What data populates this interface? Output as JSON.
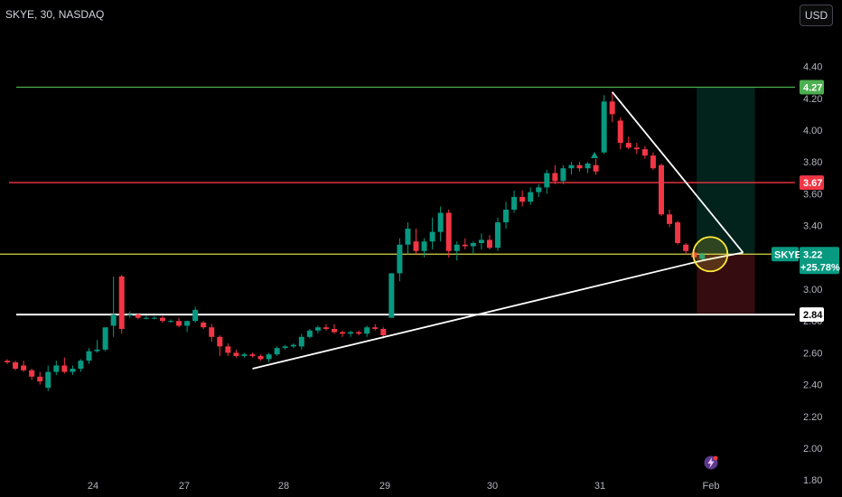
{
  "header": {
    "symbol_line": "SKYE, 30, NASDAQ",
    "currency_button": "USD"
  },
  "chart_data": {
    "type": "candlestick",
    "title": "SKYE, 30, NASDAQ",
    "currency": "USD",
    "ylim": [
      1.7,
      4.55
    ],
    "y_ticks": [
      1.8,
      2.0,
      2.2,
      2.4,
      2.6,
      2.8,
      3.0,
      3.2,
      3.4,
      3.6,
      3.8,
      4.0,
      4.2,
      4.4
    ],
    "x_ticks": [
      "24",
      "27",
      "28",
      "29",
      "30",
      "31",
      "Feb"
    ],
    "grid": false,
    "candles": [
      [
        2.55,
        2.56,
        2.53,
        2.54
      ],
      [
        2.54,
        2.55,
        2.49,
        2.5
      ],
      [
        2.52,
        2.55,
        2.48,
        2.49
      ],
      [
        2.49,
        2.5,
        2.43,
        2.45
      ],
      [
        2.45,
        2.48,
        2.4,
        2.42
      ],
      [
        2.38,
        2.52,
        2.36,
        2.48
      ],
      [
        2.48,
        2.55,
        2.46,
        2.52
      ],
      [
        2.52,
        2.57,
        2.47,
        2.48
      ],
      [
        2.48,
        2.52,
        2.46,
        2.5
      ],
      [
        2.5,
        2.56,
        2.48,
        2.55
      ],
      [
        2.55,
        2.63,
        2.53,
        2.61
      ],
      [
        2.61,
        2.68,
        2.6,
        2.62
      ],
      [
        2.62,
        2.76,
        2.61,
        2.76
      ],
      [
        2.77,
        3.08,
        2.7,
        2.84
      ],
      [
        3.08,
        3.09,
        2.72,
        2.75
      ],
      [
        2.84,
        2.86,
        2.82,
        2.84
      ],
      [
        2.84,
        2.85,
        2.81,
        2.82
      ],
      [
        2.82,
        2.83,
        2.81,
        2.82
      ],
      [
        2.82,
        2.83,
        2.81,
        2.82
      ],
      [
        2.82,
        2.83,
        2.79,
        2.8
      ],
      [
        2.8,
        2.81,
        2.79,
        2.8
      ],
      [
        2.8,
        2.82,
        2.76,
        2.77
      ],
      [
        2.77,
        2.8,
        2.73,
        2.8
      ],
      [
        2.8,
        2.89,
        2.79,
        2.87
      ],
      [
        2.79,
        2.8,
        2.75,
        2.76
      ],
      [
        2.76,
        2.78,
        2.67,
        2.7
      ],
      [
        2.7,
        2.71,
        2.58,
        2.64
      ],
      [
        2.64,
        2.66,
        2.58,
        2.6
      ],
      [
        2.6,
        2.62,
        2.57,
        2.58
      ],
      [
        2.58,
        2.6,
        2.57,
        2.59
      ],
      [
        2.59,
        2.6,
        2.57,
        2.58
      ],
      [
        2.58,
        2.59,
        2.55,
        2.56
      ],
      [
        2.56,
        2.6,
        2.54,
        2.59
      ],
      [
        2.59,
        2.64,
        2.58,
        2.63
      ],
      [
        2.63,
        2.65,
        2.62,
        2.64
      ],
      [
        2.64,
        2.66,
        2.63,
        2.65
      ],
      [
        2.64,
        2.72,
        2.62,
        2.7
      ],
      [
        2.7,
        2.75,
        2.69,
        2.74
      ],
      [
        2.74,
        2.77,
        2.72,
        2.76
      ],
      [
        2.76,
        2.78,
        2.74,
        2.75
      ],
      [
        2.75,
        2.78,
        2.72,
        2.73
      ],
      [
        2.73,
        2.74,
        2.7,
        2.72
      ],
      [
        2.72,
        2.74,
        2.7,
        2.73
      ],
      [
        2.73,
        2.74,
        2.71,
        2.72
      ],
      [
        2.72,
        2.77,
        2.7,
        2.76
      ],
      [
        2.76,
        2.78,
        2.74,
        2.75
      ],
      [
        2.75,
        2.76,
        2.69,
        2.71
      ],
      [
        2.82,
        3.1,
        2.82,
        3.1
      ],
      [
        3.1,
        3.32,
        3.05,
        3.28
      ],
      [
        3.28,
        3.42,
        3.22,
        3.38
      ],
      [
        3.3,
        3.38,
        3.22,
        3.24
      ],
      [
        3.24,
        3.32,
        3.2,
        3.3
      ],
      [
        3.3,
        3.45,
        3.25,
        3.36
      ],
      [
        3.36,
        3.52,
        3.3,
        3.48
      ],
      [
        3.48,
        3.5,
        3.2,
        3.24
      ],
      [
        3.24,
        3.3,
        3.18,
        3.28
      ],
      [
        3.28,
        3.32,
        3.25,
        3.27
      ],
      [
        3.27,
        3.3,
        3.22,
        3.29
      ],
      [
        3.29,
        3.35,
        3.25,
        3.31
      ],
      [
        3.31,
        3.34,
        3.25,
        3.26
      ],
      [
        3.26,
        3.45,
        3.24,
        3.42
      ],
      [
        3.42,
        3.55,
        3.38,
        3.5
      ],
      [
        3.5,
        3.62,
        3.48,
        3.58
      ],
      [
        3.58,
        3.62,
        3.52,
        3.55
      ],
      [
        3.55,
        3.64,
        3.53,
        3.61
      ],
      [
        3.61,
        3.66,
        3.58,
        3.64
      ],
      [
        3.64,
        3.75,
        3.6,
        3.73
      ],
      [
        3.73,
        3.78,
        3.66,
        3.68
      ],
      [
        3.68,
        3.78,
        3.66,
        3.76
      ],
      [
        3.76,
        3.8,
        3.72,
        3.78
      ],
      [
        3.78,
        3.8,
        3.74,
        3.76
      ],
      [
        3.76,
        3.8,
        3.73,
        3.79
      ],
      [
        3.78,
        3.82,
        3.72,
        3.74
      ],
      [
        3.86,
        4.22,
        3.85,
        4.18
      ],
      [
        4.18,
        4.24,
        4.05,
        4.1
      ],
      [
        4.06,
        4.08,
        3.88,
        3.92
      ],
      [
        3.92,
        3.96,
        3.88,
        3.89
      ],
      [
        3.89,
        3.92,
        3.85,
        3.88
      ],
      [
        3.88,
        3.9,
        3.82,
        3.84
      ],
      [
        3.84,
        3.86,
        3.75,
        3.76
      ],
      [
        3.78,
        3.79,
        3.46,
        3.47
      ],
      [
        3.47,
        3.5,
        3.39,
        3.41
      ],
      [
        3.42,
        3.43,
        3.28,
        3.29
      ],
      [
        3.28,
        3.29,
        3.22,
        3.24
      ],
      [
        3.23,
        3.24,
        3.19,
        3.2
      ],
      [
        3.19,
        3.23,
        3.18,
        3.22
      ]
    ],
    "horizontal_levels": [
      {
        "price": 4.27,
        "label": "4.27",
        "color": "#4caf50"
      },
      {
        "price": 3.67,
        "label": "3.67",
        "color": "#f23645"
      },
      {
        "price": 3.22,
        "label": "3.22",
        "color": "#d4d44a"
      },
      {
        "price": 2.84,
        "label": "2.84",
        "color": "#ffffff"
      }
    ],
    "last_price": {
      "symbol": "SKYE",
      "value": "3.22",
      "change": "+25.78%"
    },
    "annotations": {
      "trendlines": [
        {
          "from": [
            30,
            2.5
          ],
          "to": [
            85,
            3.18
          ]
        },
        {
          "from": [
            74,
            4.24
          ],
          "to": [
            90,
            3.23
          ]
        },
        {
          "from": [
            85,
            3.18
          ],
          "to": [
            90,
            3.23
          ]
        }
      ],
      "target_zone": {
        "bar_from": 85,
        "bar_to": 91,
        "entry": 3.22,
        "target": 4.27,
        "stop": 2.84
      },
      "highlight_circle": {
        "bar": 86,
        "price": 3.22
      }
    }
  },
  "colors": {
    "up": "#089981",
    "down": "#f23645",
    "background": "#000000",
    "axis_text": "#b2b5be"
  }
}
